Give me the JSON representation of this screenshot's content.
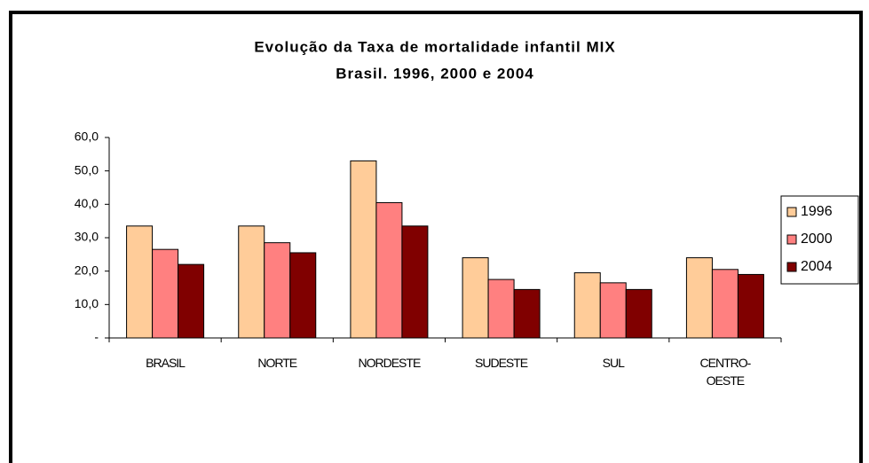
{
  "chart_data": {
    "type": "bar",
    "title": "Evolução da Taxa de mortalidade infantil MIX",
    "subtitle": "Brasil. 1996, 2000 e 2004",
    "categories": [
      "BRASIL",
      "NORTE",
      "NORDESTE",
      "SUDESTE",
      "SUL",
      "CENTRO-OESTE"
    ],
    "series": [
      {
        "name": "1996",
        "color": "#ffcc99",
        "values": [
          33.5,
          33.5,
          53,
          24,
          19.5,
          24
        ]
      },
      {
        "name": "2000",
        "color": "#ff8080",
        "values": [
          26.5,
          28.5,
          40.5,
          17.5,
          16.5,
          20.5
        ]
      },
      {
        "name": "2004",
        "color": "#800000",
        "values": [
          22,
          25.5,
          33.5,
          14.5,
          14.5,
          19
        ]
      }
    ],
    "ylim": [
      0,
      60
    ],
    "yticks": [
      {
        "value": 0,
        "label": "-"
      },
      {
        "value": 10,
        "label": "10,0"
      },
      {
        "value": 20,
        "label": "20,0"
      },
      {
        "value": 30,
        "label": "30,0"
      },
      {
        "value": 40,
        "label": "40,0"
      },
      {
        "value": 50,
        "label": "50,0"
      },
      {
        "value": 60,
        "label": "60,0"
      }
    ],
    "grid": false,
    "legend": "right"
  }
}
